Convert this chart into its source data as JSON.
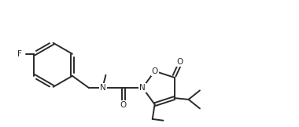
{
  "bg_color": "#ffffff",
  "line_color": "#2a2a2a",
  "line_width": 1.4,
  "font_size": 7.5,
  "fig_width": 3.8,
  "fig_height": 1.62,
  "dpi": 100,
  "xlim": [
    0,
    10.5
  ],
  "ylim": [
    0,
    4.5
  ]
}
